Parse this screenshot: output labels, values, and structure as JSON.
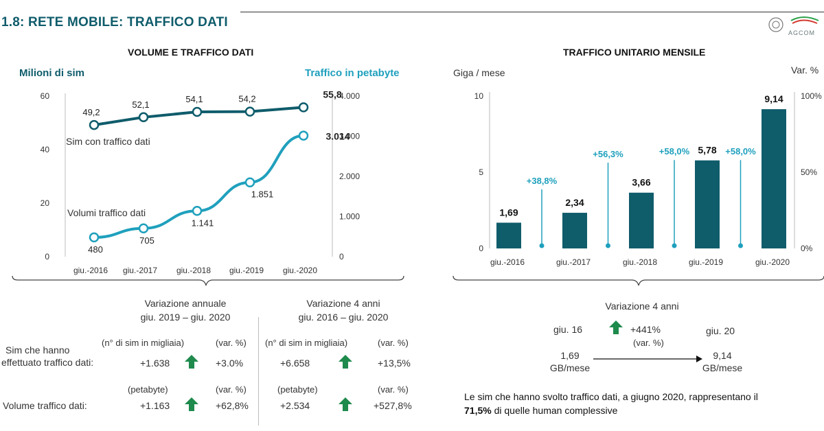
{
  "page": {
    "title": "1.8: RETE MOBILE: TRAFFICO DATI",
    "logo_text": "AGCOM"
  },
  "left_chart": {
    "title": "VOLUME E TRAFFICO DATI",
    "left_axis_title": "Milioni di sim",
    "right_axis_title": "Traffico in petabyte",
    "series_label_sim": "Sim con traffico dati",
    "series_label_vol": "Volumi traffico dati"
  },
  "right_chart": {
    "title": "TRAFFICO UNITARIO MENSILE",
    "left_axis_title": "Giga / mese",
    "right_axis_title": "Var. %"
  },
  "chart_data": [
    {
      "type": "line",
      "title": "VOLUME E TRAFFICO DATI",
      "categories": [
        "giu.-2016",
        "giu.-2017",
        "giu.-2018",
        "giu.-2019",
        "giu.-2020"
      ],
      "y_left": {
        "label": "Milioni di sim",
        "range": [
          0,
          60
        ],
        "ticks": [
          "0",
          "20",
          "40",
          "60"
        ]
      },
      "y_right": {
        "label": "Traffico in petabyte",
        "range": [
          0,
          4000
        ],
        "ticks": [
          "0",
          "1.000",
          "2.000",
          "3.000",
          "4.000"
        ]
      },
      "series": [
        {
          "name": "Sim con traffico dati",
          "axis": "left",
          "color": "#0f5c6b",
          "values": [
            49.2,
            52.1,
            54.1,
            54.2,
            55.8
          ],
          "labels": [
            "49,2",
            "52,1",
            "54,1",
            "54,2",
            "55,8"
          ]
        },
        {
          "name": "Volumi traffico dati",
          "axis": "right",
          "color": "#1fa0bd",
          "values": [
            480,
            705,
            1141,
            1851,
            3014
          ],
          "labels": [
            "480",
            "705",
            "1.141",
            "1.851",
            "3.014"
          ]
        }
      ]
    },
    {
      "type": "bar",
      "title": "TRAFFICO UNITARIO MENSILE",
      "categories": [
        "giu.-2016",
        "giu.-2017",
        "giu.-2018",
        "giu.-2019",
        "giu.-2020"
      ],
      "y_left": {
        "label": "Giga / mese",
        "range": [
          0,
          10
        ],
        "ticks": [
          "0",
          "5",
          "10"
        ]
      },
      "y_right": {
        "label": "Var. %",
        "range": [
          0,
          100
        ],
        "ticks": [
          "0%",
          "50%",
          "100%"
        ]
      },
      "series": [
        {
          "name": "",
          "color": "#0f5c6b",
          "values": [
            1.69,
            2.34,
            3.66,
            5.78,
            9.14
          ],
          "labels": [
            "1,69",
            "2,34",
            "3,66",
            "5,78",
            "9,14"
          ]
        }
      ],
      "variations": [
        {
          "value": 38.8,
          "label": "+38,8%"
        },
        {
          "value": 56.3,
          "label": "+56,3%"
        },
        {
          "value": 58.0,
          "label": "+58,0%"
        },
        {
          "value": 58.0,
          "label": "+58,0%"
        }
      ],
      "variation_color": "#1fa0bd"
    }
  ],
  "table": {
    "col_annual_title": "Variazione annuale",
    "col_annual_period": "giu. 2019 – giu. 2020",
    "col_4y_title": "Variazione 4 anni",
    "col_4y_period": "giu. 2016 – giu. 2020",
    "row1_label_a": "Sim che hanno",
    "row1_label_b": "effettuato traffico dati:",
    "row1_unit_abs": "(n° di  sim in migliaia)",
    "row1_unit_pct": "(var. %)",
    "row1_annual_abs": "+1.638",
    "row1_annual_pct": "+3.0%",
    "row1_4y_abs": "+6.658",
    "row1_4y_pct": "+13,5%",
    "row2_label": "Volume traffico dati:",
    "row2_unit_abs": "(petabyte)",
    "row2_unit_pct": "(var. %)",
    "row2_annual_abs": "+1.163",
    "row2_annual_pct": "+62,8%",
    "row2_4y_abs": "+2.534",
    "row2_4y_pct": "+527,8%"
  },
  "summary": {
    "title": "Variazione 4 anni",
    "from_label": "giu. 16",
    "to_label": "giu. 20",
    "change": "+441%",
    "change_unit": "(var. %)",
    "from_value": "1,69",
    "from_unit": "GB/mese",
    "to_value": "9,14",
    "to_unit": "GB/mese",
    "note_line1": "Le sim che hanno svolto traffico dati, a giugno 2020, rappresentano il",
    "note_pct": "71,5%",
    "note_line2_rest": " di quelle human complessive"
  },
  "colors": {
    "dark_teal": "#0f5c6b",
    "light_teal": "#1fa0bd",
    "arrow_green": "#1e8a4c"
  }
}
